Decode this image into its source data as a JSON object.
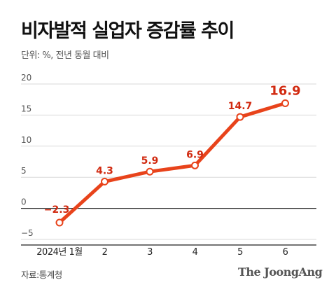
{
  "title": "비자발적 실업자 증감률 추이",
  "subtitle": "단위: %, 전년 동월 대비",
  "source": "자료:통계청",
  "brand": "The JoongAng",
  "colors": {
    "series": "#e8431b",
    "label": "#d12a10",
    "axis": "#222222",
    "grid": "#d9d9d9",
    "tick": "#555555"
  },
  "chart_data": {
    "type": "line",
    "categories": [
      "2024년 1월",
      "2",
      "3",
      "4",
      "5",
      "6"
    ],
    "series": [
      {
        "values": [
          -2.3,
          4.3,
          5.9,
          6.9,
          14.7,
          16.9
        ]
      }
    ],
    "data_labels": [
      "−2.3",
      "4.3",
      "5.9",
      "6.9",
      "14.7",
      "16.9"
    ],
    "yticks": [
      20,
      15,
      10,
      5,
      0,
      -5
    ],
    "ytick_labels": [
      "20",
      "15",
      "10",
      "5",
      "0",
      "−5"
    ],
    "ylim": [
      -5,
      20
    ],
    "grid": true
  }
}
